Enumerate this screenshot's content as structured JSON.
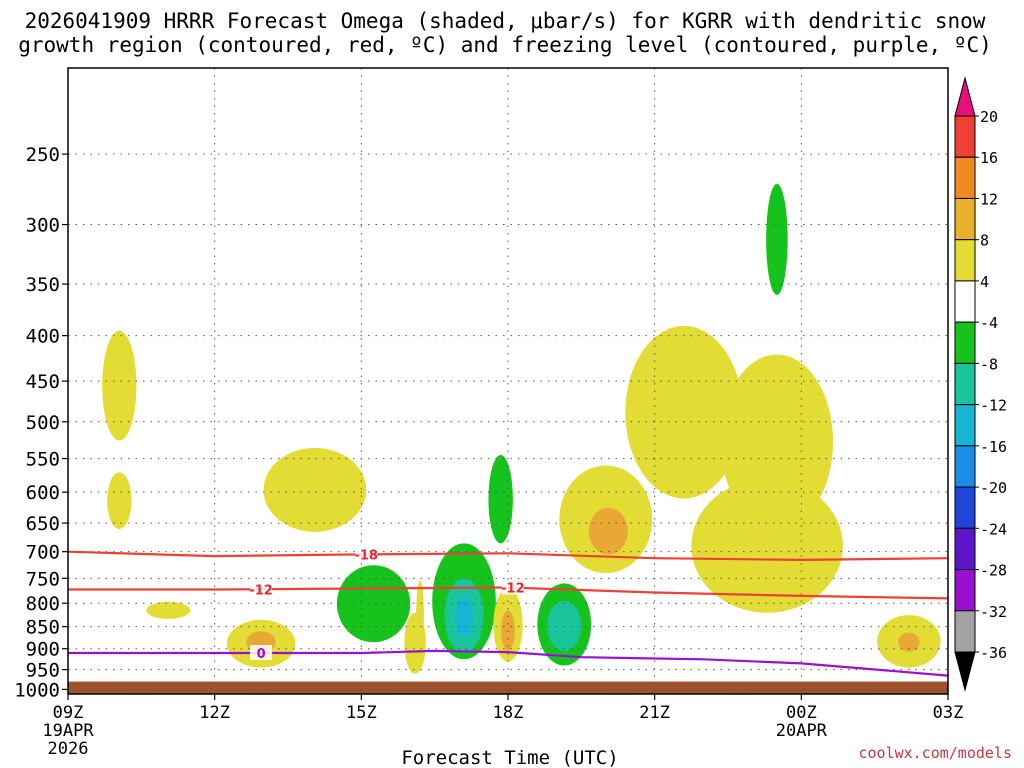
{
  "chart_data": {
    "type": "heatmap",
    "title_line_1": "2026041909 HRRR Forecast Omega (shaded, μbar/s) for KGRR with dendritic snow",
    "title_line_2": "growth region (contoured, red, ºC) and freezing level (contoured, purple, ºC)",
    "xlabel": "Forecast Time (UTC)",
    "x_range_hours": [
      0,
      18
    ],
    "x_ticks": [
      {
        "hour": 0,
        "label": "09Z",
        "sub1": "19APR",
        "sub2": "2026"
      },
      {
        "hour": 3,
        "label": "12Z",
        "sub1": "",
        "sub2": ""
      },
      {
        "hour": 6,
        "label": "15Z",
        "sub1": "",
        "sub2": ""
      },
      {
        "hour": 9,
        "label": "18Z",
        "sub1": "",
        "sub2": ""
      },
      {
        "hour": 12,
        "label": "21Z",
        "sub1": "",
        "sub2": ""
      },
      {
        "hour": 15,
        "label": "00Z",
        "sub1": "20APR",
        "sub2": ""
      },
      {
        "hour": 18,
        "label": "03Z",
        "sub1": "",
        "sub2": ""
      }
    ],
    "y_ticks_hpa": [
      250,
      300,
      350,
      400,
      450,
      500,
      550,
      600,
      650,
      700,
      750,
      800,
      850,
      900,
      950,
      1000
    ],
    "y_range_hpa": [
      200,
      1000
    ],
    "colorbar": {
      "labels": [
        "20",
        "16",
        "12",
        "8",
        "4",
        "-4",
        "-8",
        "-12",
        "-16",
        "-20",
        "-24",
        "-28",
        "-32",
        "-36"
      ],
      "colors": [
        "#e8107a",
        "#f04035",
        "#ef8a22",
        "#e8b12c",
        "#e3dc35",
        "#ffffff",
        "#16c21c",
        "#19c49a",
        "#16b5d5",
        "#1a8ee6",
        "#2045d8",
        "#5a16c8",
        "#9a10d0",
        "#a3a3a3",
        "#000000"
      ]
    },
    "contour_labels": {
      "dgz_upper": "-18",
      "dgz_lower": "-12",
      "dgz_lower_2": "-12",
      "freezing": "0"
    },
    "series": [
      {
        "name": "-18 C isotherm (hPa)",
        "hours": [
          0,
          3,
          6,
          9,
          12,
          15,
          18
        ],
        "hpa": [
          700,
          708,
          705,
          703,
          712,
          715,
          712
        ]
      },
      {
        "name": "-12 C isotherm (hPa)",
        "hours": [
          0,
          3,
          6,
          9,
          12,
          15,
          18
        ],
        "hpa": [
          772,
          772,
          770,
          768,
          778,
          785,
          790
        ]
      },
      {
        "name": "0 C freezing level (hPa)",
        "hours": [
          0,
          3,
          6,
          7.5,
          9,
          10.5,
          13,
          15,
          18
        ],
        "hpa": [
          910,
          910,
          910,
          905,
          908,
          920,
          925,
          935,
          965
        ]
      }
    ],
    "omega_regions": [
      {
        "level": "4",
        "h": 1.05,
        "p": 460,
        "rh": 0.35,
        "rp": 65
      },
      {
        "level": "4",
        "h": 1.05,
        "p": 615,
        "rh": 0.25,
        "rp": 45
      },
      {
        "level": "4",
        "h": 2.05,
        "p": 815,
        "rh": 0.45,
        "rp": 18
      },
      {
        "level": "4",
        "h": 5.05,
        "p": 600,
        "rh": 1.05,
        "rp": 65
      },
      {
        "level": "4",
        "h": 3.95,
        "p": 890,
        "rh": 0.7,
        "rp": 55
      },
      {
        "level": "8",
        "h": 3.95,
        "p": 885,
        "rh": 0.3,
        "rp": 25
      },
      {
        "level": "4",
        "h": 7.1,
        "p": 890,
        "rh": 0.22,
        "rp": 70
      },
      {
        "level": "4",
        "h": 7.2,
        "p": 830,
        "rh": 0.08,
        "rp": 75
      },
      {
        "level": "-4",
        "h": 6.25,
        "p": 805,
        "rh": 0.75,
        "rp": 80
      },
      {
        "level": "-4",
        "h": 8.1,
        "p": 805,
        "rh": 0.65,
        "rp": 120
      },
      {
        "level": "-4",
        "h": 8.85,
        "p": 615,
        "rh": 0.25,
        "rp": 70
      },
      {
        "level": "-8",
        "h": 8.1,
        "p": 830,
        "rh": 0.4,
        "rp": 80
      },
      {
        "level": "-12",
        "h": 8.1,
        "p": 830,
        "rh": 0.18,
        "rp": 45
      },
      {
        "level": "4",
        "h": 9.0,
        "p": 850,
        "rh": 0.3,
        "rp": 80
      },
      {
        "level": "8",
        "h": 9.0,
        "p": 860,
        "rh": 0.14,
        "rp": 45
      },
      {
        "level": "-4",
        "h": 10.15,
        "p": 850,
        "rh": 0.55,
        "rp": 90
      },
      {
        "level": "-8",
        "h": 10.15,
        "p": 850,
        "rh": 0.35,
        "rp": 55
      },
      {
        "level": "4",
        "h": 11.0,
        "p": 650,
        "rh": 0.95,
        "rp": 90
      },
      {
        "level": "8",
        "h": 11.05,
        "p": 665,
        "rh": 0.4,
        "rp": 40
      },
      {
        "level": "4",
        "h": 12.6,
        "p": 500,
        "rh": 1.2,
        "rp": 110
      },
      {
        "level": "4",
        "h": 14.5,
        "p": 540,
        "rh": 1.15,
        "rp": 120
      },
      {
        "level": "4",
        "h": 14.3,
        "p": 700,
        "rh": 1.55,
        "rp": 120
      },
      {
        "level": "-4",
        "h": 14.5,
        "p": 315,
        "rh": 0.22,
        "rp": 45
      },
      {
        "level": "4",
        "h": 17.2,
        "p": 885,
        "rh": 0.65,
        "rp": 60
      },
      {
        "level": "8",
        "h": 17.2,
        "p": 885,
        "rh": 0.22,
        "rp": 22
      }
    ],
    "terrain_top_hpa": 980,
    "grid": true
  },
  "credit": "coolwx.com/models"
}
